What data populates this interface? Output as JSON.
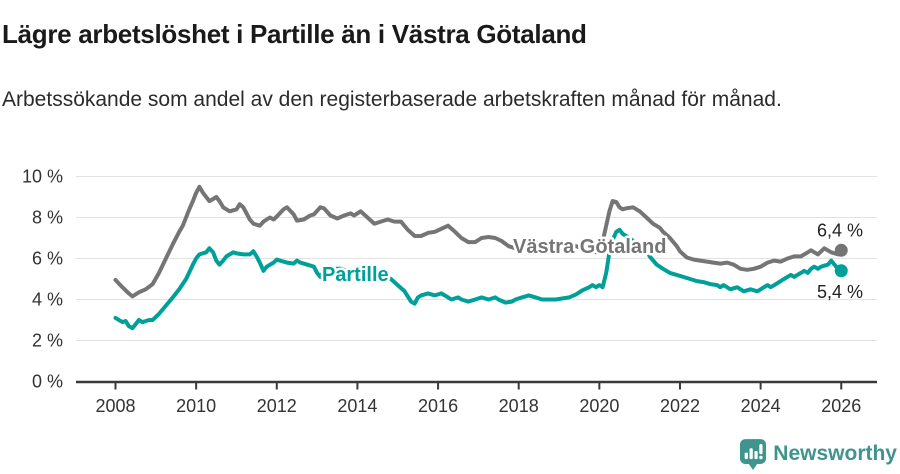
{
  "header": {
    "title": "Lägre arbetslöshet i Partille än i Västra Götaland",
    "subtitle": "Arbetssökande som andel av den registerbaserade arbetskraften månad för månad."
  },
  "footer": {
    "brand": "Newsworthy",
    "brand_color": "#3f948e",
    "logo_icon": "newsworthy-bubble-chart-icon"
  },
  "chart_data": {
    "type": "line",
    "title": "Lägre arbetslöshet i Partille än i Västra Götaland",
    "xlabel": "",
    "ylabel": "",
    "grid": true,
    "x_axis": {
      "tick_values": [
        2008,
        2010,
        2012,
        2014,
        2016,
        2018,
        2020,
        2022,
        2024,
        2026
      ],
      "tick_labels": [
        "2008",
        "2010",
        "2012",
        "2014",
        "2016",
        "2018",
        "2020",
        "2022",
        "2024",
        "2026"
      ],
      "range": [
        2007.0,
        2026.9
      ]
    },
    "y_axis": {
      "tick_values": [
        0,
        2,
        4,
        6,
        8,
        10
      ],
      "tick_labels": [
        "0 %",
        "2 %",
        "4 %",
        "6 %",
        "8 %",
        "10 %"
      ],
      "range": [
        0,
        10
      ]
    },
    "series": [
      {
        "name": "Västra Götaland",
        "slug": "vastra-gotaland",
        "color": "#757575",
        "inline_label": {
          "text": "Västra Götaland",
          "x_year": 2017.86,
          "y_pct": 6.27
        },
        "end_value": 6.4,
        "end_label": "6,4 %",
        "end_label_pos": "above",
        "points": [
          [
            2008.0,
            4.95
          ],
          [
            2008.17,
            4.6
          ],
          [
            2008.33,
            4.3
          ],
          [
            2008.42,
            4.15
          ],
          [
            2008.58,
            4.35
          ],
          [
            2008.75,
            4.5
          ],
          [
            2008.92,
            4.75
          ],
          [
            2009.08,
            5.3
          ],
          [
            2009.25,
            6.0
          ],
          [
            2009.42,
            6.7
          ],
          [
            2009.58,
            7.3
          ],
          [
            2009.67,
            7.6
          ],
          [
            2009.83,
            8.4
          ],
          [
            2009.92,
            8.8
          ],
          [
            2010.0,
            9.2
          ],
          [
            2010.08,
            9.5
          ],
          [
            2010.17,
            9.2
          ],
          [
            2010.33,
            8.8
          ],
          [
            2010.42,
            8.9
          ],
          [
            2010.5,
            9.0
          ],
          [
            2010.58,
            8.8
          ],
          [
            2010.67,
            8.5
          ],
          [
            2010.83,
            8.3
          ],
          [
            2010.92,
            8.35
          ],
          [
            2011.0,
            8.4
          ],
          [
            2011.08,
            8.65
          ],
          [
            2011.17,
            8.5
          ],
          [
            2011.33,
            7.9
          ],
          [
            2011.42,
            7.7
          ],
          [
            2011.58,
            7.6
          ],
          [
            2011.67,
            7.8
          ],
          [
            2011.83,
            8.0
          ],
          [
            2011.92,
            7.9
          ],
          [
            2012.0,
            8.05
          ],
          [
            2012.17,
            8.4
          ],
          [
            2012.25,
            8.5
          ],
          [
            2012.42,
            8.15
          ],
          [
            2012.5,
            7.85
          ],
          [
            2012.67,
            7.9
          ],
          [
            2012.83,
            8.1
          ],
          [
            2012.92,
            8.15
          ],
          [
            2013.08,
            8.5
          ],
          [
            2013.17,
            8.45
          ],
          [
            2013.33,
            8.1
          ],
          [
            2013.5,
            7.95
          ],
          [
            2013.67,
            8.1
          ],
          [
            2013.83,
            8.2
          ],
          [
            2013.92,
            8.1
          ],
          [
            2014.08,
            8.3
          ],
          [
            2014.25,
            8.0
          ],
          [
            2014.42,
            7.7
          ],
          [
            2014.58,
            7.8
          ],
          [
            2014.75,
            7.9
          ],
          [
            2014.92,
            7.8
          ],
          [
            2015.08,
            7.8
          ],
          [
            2015.25,
            7.4
          ],
          [
            2015.42,
            7.1
          ],
          [
            2015.58,
            7.1
          ],
          [
            2015.75,
            7.25
          ],
          [
            2015.92,
            7.3
          ],
          [
            2016.08,
            7.45
          ],
          [
            2016.25,
            7.6
          ],
          [
            2016.42,
            7.3
          ],
          [
            2016.58,
            7.0
          ],
          [
            2016.75,
            6.8
          ],
          [
            2016.92,
            6.8
          ],
          [
            2017.08,
            7.0
          ],
          [
            2017.25,
            7.05
          ],
          [
            2017.42,
            7.0
          ],
          [
            2017.58,
            6.85
          ],
          [
            2017.75,
            6.6
          ],
          [
            2017.92,
            6.5
          ],
          [
            2018.08,
            6.7
          ],
          [
            2018.25,
            6.85
          ],
          [
            2018.42,
            6.8
          ],
          [
            2018.58,
            6.6
          ],
          [
            2018.75,
            6.5
          ],
          [
            2018.92,
            6.45
          ],
          [
            2019.08,
            6.55
          ],
          [
            2019.25,
            6.6
          ],
          [
            2019.42,
            6.6
          ],
          [
            2019.58,
            6.5
          ],
          [
            2019.75,
            6.5
          ],
          [
            2019.92,
            6.3
          ],
          [
            2020.08,
            6.8
          ],
          [
            2020.17,
            7.6
          ],
          [
            2020.25,
            8.3
          ],
          [
            2020.33,
            8.8
          ],
          [
            2020.42,
            8.75
          ],
          [
            2020.5,
            8.5
          ],
          [
            2020.58,
            8.4
          ],
          [
            2020.67,
            8.45
          ],
          [
            2020.83,
            8.5
          ],
          [
            2020.92,
            8.4
          ],
          [
            2021.0,
            8.3
          ],
          [
            2021.17,
            8.0
          ],
          [
            2021.33,
            7.7
          ],
          [
            2021.5,
            7.5
          ],
          [
            2021.58,
            7.3
          ],
          [
            2021.75,
            7.0
          ],
          [
            2021.92,
            6.6
          ],
          [
            2022.0,
            6.35
          ],
          [
            2022.17,
            6.05
          ],
          [
            2022.33,
            5.95
          ],
          [
            2022.5,
            5.9
          ],
          [
            2022.67,
            5.85
          ],
          [
            2022.83,
            5.8
          ],
          [
            2023.0,
            5.75
          ],
          [
            2023.17,
            5.8
          ],
          [
            2023.33,
            5.7
          ],
          [
            2023.5,
            5.5
          ],
          [
            2023.67,
            5.45
          ],
          [
            2023.83,
            5.5
          ],
          [
            2024.0,
            5.6
          ],
          [
            2024.17,
            5.8
          ],
          [
            2024.33,
            5.9
          ],
          [
            2024.5,
            5.85
          ],
          [
            2024.67,
            6.0
          ],
          [
            2024.83,
            6.1
          ],
          [
            2025.0,
            6.1
          ],
          [
            2025.17,
            6.3
          ],
          [
            2025.25,
            6.4
          ],
          [
            2025.42,
            6.2
          ],
          [
            2025.58,
            6.5
          ],
          [
            2025.75,
            6.3
          ],
          [
            2025.92,
            6.2
          ],
          [
            2026.0,
            6.4
          ]
        ]
      },
      {
        "name": "Partille",
        "slug": "partille",
        "color": "#00a09a",
        "inline_label": {
          "text": "Partille",
          "x_year": 2013.12,
          "y_pct": 4.9
        },
        "end_value": 5.4,
        "end_label": "5,4 %",
        "end_label_pos": "below",
        "points": [
          [
            2008.0,
            3.1
          ],
          [
            2008.17,
            2.9
          ],
          [
            2008.25,
            2.95
          ],
          [
            2008.33,
            2.7
          ],
          [
            2008.42,
            2.6
          ],
          [
            2008.5,
            2.8
          ],
          [
            2008.58,
            3.0
          ],
          [
            2008.67,
            2.9
          ],
          [
            2008.83,
            3.0
          ],
          [
            2008.92,
            3.0
          ],
          [
            2009.08,
            3.3
          ],
          [
            2009.25,
            3.7
          ],
          [
            2009.42,
            4.1
          ],
          [
            2009.58,
            4.5
          ],
          [
            2009.75,
            5.0
          ],
          [
            2009.92,
            5.7
          ],
          [
            2010.0,
            6.0
          ],
          [
            2010.08,
            6.2
          ],
          [
            2010.25,
            6.3
          ],
          [
            2010.33,
            6.5
          ],
          [
            2010.42,
            6.3
          ],
          [
            2010.5,
            5.9
          ],
          [
            2010.58,
            5.7
          ],
          [
            2010.67,
            5.9
          ],
          [
            2010.75,
            6.1
          ],
          [
            2010.92,
            6.3
          ],
          [
            2011.0,
            6.25
          ],
          [
            2011.17,
            6.2
          ],
          [
            2011.33,
            6.2
          ],
          [
            2011.42,
            6.35
          ],
          [
            2011.5,
            6.1
          ],
          [
            2011.58,
            5.8
          ],
          [
            2011.67,
            5.4
          ],
          [
            2011.75,
            5.6
          ],
          [
            2011.92,
            5.8
          ],
          [
            2012.0,
            5.95
          ],
          [
            2012.08,
            5.9
          ],
          [
            2012.25,
            5.8
          ],
          [
            2012.42,
            5.75
          ],
          [
            2012.5,
            5.9
          ],
          [
            2012.58,
            5.8
          ],
          [
            2012.75,
            5.7
          ],
          [
            2012.92,
            5.6
          ],
          [
            2013.0,
            5.3
          ],
          [
            2013.08,
            5.1
          ],
          [
            2013.17,
            5.4
          ],
          [
            2013.25,
            5.6
          ],
          [
            2013.42,
            5.5
          ],
          [
            2013.58,
            5.5
          ],
          [
            2013.75,
            5.4
          ],
          [
            2013.92,
            5.4
          ],
          [
            2014.08,
            5.4
          ],
          [
            2014.33,
            5.3
          ],
          [
            2014.58,
            5.2
          ],
          [
            2014.83,
            5.0
          ],
          [
            2015.0,
            4.7
          ],
          [
            2015.17,
            4.4
          ],
          [
            2015.33,
            3.9
          ],
          [
            2015.42,
            3.8
          ],
          [
            2015.5,
            4.1
          ],
          [
            2015.58,
            4.2
          ],
          [
            2015.75,
            4.3
          ],
          [
            2015.92,
            4.2
          ],
          [
            2016.08,
            4.3
          ],
          [
            2016.25,
            4.1
          ],
          [
            2016.33,
            4.0
          ],
          [
            2016.5,
            4.1
          ],
          [
            2016.58,
            4.0
          ],
          [
            2016.75,
            3.9
          ],
          [
            2016.92,
            4.0
          ],
          [
            2017.08,
            4.1
          ],
          [
            2017.25,
            4.0
          ],
          [
            2017.42,
            4.1
          ],
          [
            2017.5,
            4.0
          ],
          [
            2017.67,
            3.85
          ],
          [
            2017.83,
            3.9
          ],
          [
            2017.92,
            4.0
          ],
          [
            2018.08,
            4.1
          ],
          [
            2018.25,
            4.2
          ],
          [
            2018.42,
            4.1
          ],
          [
            2018.58,
            4.0
          ],
          [
            2018.75,
            4.0
          ],
          [
            2018.92,
            4.0
          ],
          [
            2019.08,
            4.05
          ],
          [
            2019.25,
            4.1
          ],
          [
            2019.42,
            4.25
          ],
          [
            2019.58,
            4.45
          ],
          [
            2019.75,
            4.6
          ],
          [
            2019.83,
            4.7
          ],
          [
            2019.92,
            4.6
          ],
          [
            2020.0,
            4.7
          ],
          [
            2020.08,
            4.6
          ],
          [
            2020.17,
            5.3
          ],
          [
            2020.25,
            6.3
          ],
          [
            2020.33,
            6.9
          ],
          [
            2020.42,
            7.3
          ],
          [
            2020.5,
            7.4
          ],
          [
            2020.58,
            7.2
          ],
          [
            2020.75,
            7.0
          ],
          [
            2020.92,
            6.7
          ],
          [
            2021.0,
            6.5
          ],
          [
            2021.08,
            6.3
          ],
          [
            2021.17,
            6.4
          ],
          [
            2021.25,
            6.1
          ],
          [
            2021.42,
            5.7
          ],
          [
            2021.58,
            5.5
          ],
          [
            2021.75,
            5.3
          ],
          [
            2021.92,
            5.2
          ],
          [
            2022.08,
            5.1
          ],
          [
            2022.25,
            5.0
          ],
          [
            2022.42,
            4.9
          ],
          [
            2022.58,
            4.85
          ],
          [
            2022.75,
            4.75
          ],
          [
            2022.92,
            4.7
          ],
          [
            2023.0,
            4.6
          ],
          [
            2023.08,
            4.7
          ],
          [
            2023.25,
            4.5
          ],
          [
            2023.42,
            4.6
          ],
          [
            2023.58,
            4.4
          ],
          [
            2023.75,
            4.5
          ],
          [
            2023.92,
            4.4
          ],
          [
            2024.0,
            4.5
          ],
          [
            2024.17,
            4.7
          ],
          [
            2024.25,
            4.6
          ],
          [
            2024.42,
            4.8
          ],
          [
            2024.58,
            5.0
          ],
          [
            2024.75,
            5.2
          ],
          [
            2024.83,
            5.1
          ],
          [
            2025.0,
            5.3
          ],
          [
            2025.08,
            5.4
          ],
          [
            2025.17,
            5.3
          ],
          [
            2025.25,
            5.5
          ],
          [
            2025.33,
            5.6
          ],
          [
            2025.42,
            5.5
          ],
          [
            2025.5,
            5.6
          ],
          [
            2025.67,
            5.7
          ],
          [
            2025.75,
            5.9
          ],
          [
            2025.83,
            5.7
          ],
          [
            2025.92,
            5.5
          ],
          [
            2026.0,
            5.4
          ]
        ]
      }
    ]
  }
}
